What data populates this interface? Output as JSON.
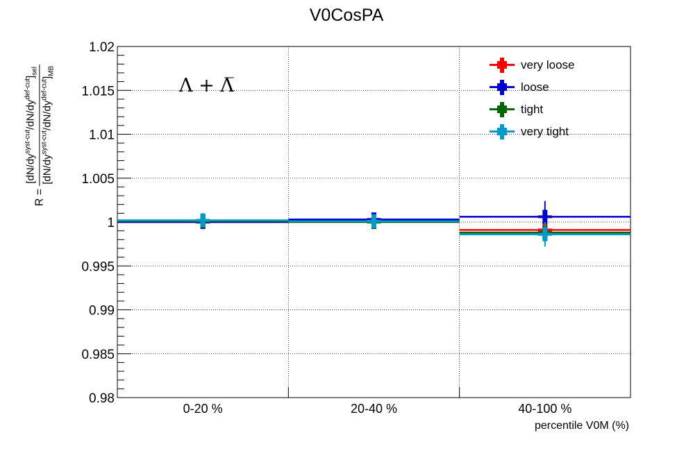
{
  "chart_data": {
    "type": "scatter",
    "title": "V0CosPA",
    "xlabel": "percentile V0M (%)",
    "ylabel": {
      "prefix": "R = ",
      "numerator": "[dN/dy^{syst-cut}/dN/dy^{def-cut}]_{sel}",
      "denominator": "[dN/dy^{syst-cut}/dN/dy^{def-cut}]_{MB}"
    },
    "annotation": "Λ + Λ̅",
    "categories": [
      "0-20 %",
      "20-40 %",
      "40-100 %"
    ],
    "bin_edges": [
      0,
      20,
      40,
      100
    ],
    "ylim": [
      0.98,
      1.02
    ],
    "yticks": [
      "0.98",
      "0.985",
      "0.99",
      "0.995",
      "1",
      "1.005",
      "1.01",
      "1.015",
      "1.02"
    ],
    "grid": true,
    "legend_position": "top-right",
    "series": [
      {
        "name": "very loose",
        "color": "#ff0000",
        "values": [
          1.0,
          1.0002,
          0.9991
        ],
        "errors": [
          0.0004,
          0.0003,
          0.0005
        ]
      },
      {
        "name": "loose",
        "color": "#0000cc",
        "values": [
          1.0,
          1.0003,
          1.0006
        ],
        "errors": [
          0.0006,
          0.0006,
          0.0018
        ]
      },
      {
        "name": "tight",
        "color": "#006600",
        "values": [
          1.0001,
          1.0,
          0.9988
        ],
        "errors": [
          0.0005,
          0.0004,
          0.0008
        ]
      },
      {
        "name": "very tight",
        "color": "#0099cc",
        "values": [
          1.0002,
          1.0001,
          0.9986
        ],
        "errors": [
          0.0008,
          0.0007,
          0.0014
        ]
      }
    ]
  }
}
